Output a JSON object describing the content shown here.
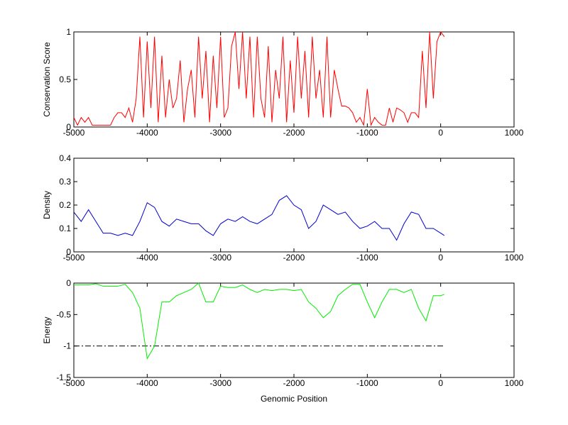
{
  "chart_data": [
    {
      "type": "line",
      "ylabel": "Conservation Score",
      "x": [
        -5000,
        -4950,
        -4900,
        -4850,
        -4800,
        -4750,
        -4700,
        -4650,
        -4600,
        -4550,
        -4500,
        -4450,
        -4400,
        -4350,
        -4300,
        -4250,
        -4200,
        -4150,
        -4100,
        -4050,
        -4000,
        -3950,
        -3900,
        -3850,
        -3800,
        -3750,
        -3700,
        -3650,
        -3600,
        -3550,
        -3500,
        -3450,
        -3400,
        -3350,
        -3300,
        -3250,
        -3200,
        -3150,
        -3100,
        -3050,
        -3000,
        -2950,
        -2900,
        -2850,
        -2800,
        -2750,
        -2700,
        -2650,
        -2600,
        -2550,
        -2500,
        -2450,
        -2400,
        -2350,
        -2300,
        -2250,
        -2200,
        -2150,
        -2100,
        -2050,
        -2000,
        -1950,
        -1900,
        -1850,
        -1800,
        -1750,
        -1700,
        -1650,
        -1600,
        -1550,
        -1500,
        -1450,
        -1400,
        -1350,
        -1300,
        -1250,
        -1200,
        -1150,
        -1100,
        -1050,
        -1000,
        -950,
        -900,
        -850,
        -800,
        -750,
        -700,
        -650,
        -600,
        -550,
        -500,
        -450,
        -400,
        -350,
        -300,
        -250,
        -200,
        -150,
        -100,
        -50,
        0,
        50
      ],
      "series": [
        {
          "color": "#ff0000",
          "values": [
            0.1,
            0.02,
            0.1,
            0.05,
            0.1,
            0.02,
            0.02,
            0.02,
            0.02,
            0.02,
            0.02,
            0.1,
            0.15,
            0.15,
            0.1,
            0.2,
            0.05,
            0.3,
            0.95,
            0.1,
            0.9,
            0.2,
            0.95,
            0.05,
            0.75,
            0.1,
            0.5,
            0.2,
            0.3,
            0.7,
            0.05,
            0.4,
            0.6,
            0.1,
            0.95,
            0.3,
            0.8,
            0.05,
            0.75,
            0.2,
            0.95,
            0.1,
            0.2,
            0.85,
            1.0,
            0.4,
            1.0,
            0.3,
            0.95,
            0.1,
            0.95,
            0.3,
            0.1,
            0.85,
            0.05,
            0.6,
            0.3,
            0.95,
            0.05,
            0.7,
            0.15,
            0.95,
            0.3,
            0.8,
            0.1,
            0.95,
            0.3,
            0.6,
            0.1,
            0.95,
            0.1,
            0.6,
            0.4,
            0.22,
            0.22,
            0.2,
            0.15,
            0.05,
            0.1,
            0.02,
            0.4,
            0.02,
            0.1,
            0.05,
            0.02,
            0.02,
            0.2,
            0.05,
            0.2,
            0.18,
            0.15,
            0.05,
            0.15,
            0.15,
            0.1,
            0.8,
            0.2,
            1.0,
            0.3,
            0.9,
            1.0,
            0.95
          ]
        }
      ],
      "xlim": [
        -5000,
        1000
      ],
      "xticks": [
        -5000,
        -4000,
        -3000,
        -2000,
        -1000,
        0,
        1000
      ],
      "ylim": [
        0,
        1
      ],
      "yticks": [
        0,
        0.5,
        1
      ]
    },
    {
      "type": "line",
      "ylabel": "Density",
      "x": [
        -5000,
        -4900,
        -4800,
        -4700,
        -4600,
        -4500,
        -4400,
        -4300,
        -4200,
        -4100,
        -4000,
        -3900,
        -3800,
        -3700,
        -3600,
        -3500,
        -3400,
        -3300,
        -3200,
        -3100,
        -3000,
        -2900,
        -2800,
        -2700,
        -2600,
        -2500,
        -2400,
        -2300,
        -2200,
        -2100,
        -2000,
        -1900,
        -1800,
        -1700,
        -1600,
        -1500,
        -1400,
        -1300,
        -1200,
        -1100,
        -1000,
        -900,
        -800,
        -700,
        -600,
        -500,
        -400,
        -300,
        -200,
        -100,
        0,
        50
      ],
      "series": [
        {
          "color": "#0000cc",
          "values": [
            0.17,
            0.13,
            0.18,
            0.13,
            0.08,
            0.08,
            0.07,
            0.08,
            0.07,
            0.13,
            0.21,
            0.19,
            0.13,
            0.11,
            0.14,
            0.13,
            0.12,
            0.12,
            0.09,
            0.07,
            0.12,
            0.14,
            0.13,
            0.15,
            0.13,
            0.12,
            0.14,
            0.16,
            0.22,
            0.24,
            0.2,
            0.18,
            0.1,
            0.13,
            0.2,
            0.18,
            0.16,
            0.17,
            0.13,
            0.1,
            0.11,
            0.13,
            0.1,
            0.1,
            0.05,
            0.12,
            0.17,
            0.16,
            0.1,
            0.1,
            0.08,
            0.07
          ]
        }
      ],
      "xlim": [
        -5000,
        1000
      ],
      "xticks": [
        -5000,
        -4000,
        -3000,
        -2000,
        -1000,
        0,
        1000
      ],
      "ylim": [
        0,
        0.4
      ],
      "yticks": [
        0,
        0.1,
        0.2,
        0.3,
        0.4
      ]
    },
    {
      "type": "line",
      "ylabel": "Energy",
      "xlabel": "Genomic Position",
      "x": [
        -5000,
        -4900,
        -4800,
        -4700,
        -4600,
        -4500,
        -4400,
        -4300,
        -4200,
        -4100,
        -4000,
        -3900,
        -3800,
        -3700,
        -3600,
        -3500,
        -3400,
        -3300,
        -3200,
        -3100,
        -3000,
        -2900,
        -2800,
        -2700,
        -2600,
        -2500,
        -2400,
        -2300,
        -2200,
        -2100,
        -2000,
        -1900,
        -1800,
        -1700,
        -1600,
        -1500,
        -1400,
        -1300,
        -1200,
        -1100,
        -1000,
        -900,
        -800,
        -700,
        -600,
        -500,
        -400,
        -300,
        -200,
        -100,
        0,
        50
      ],
      "series": [
        {
          "color": "#00ee00",
          "values": [
            -0.03,
            -0.03,
            -0.03,
            -0.01,
            -0.05,
            -0.05,
            -0.05,
            -0.02,
            -0.15,
            -0.4,
            -1.2,
            -1.0,
            -0.3,
            -0.3,
            -0.2,
            -0.15,
            -0.1,
            0,
            -0.3,
            -0.3,
            -0.05,
            -0.07,
            -0.07,
            -0.03,
            -0.1,
            -0.15,
            -0.1,
            -0.12,
            -0.1,
            -0.1,
            -0.12,
            -0.1,
            -0.3,
            -0.4,
            -0.55,
            -0.45,
            -0.2,
            -0.1,
            -0.02,
            -0.02,
            -0.3,
            -0.55,
            -0.3,
            -0.1,
            -0.1,
            -0.15,
            -0.1,
            -0.4,
            -0.6,
            -0.2,
            -0.2,
            -0.18
          ]
        }
      ],
      "hline": -1,
      "hline_xlim": [
        -5000,
        50
      ],
      "xlim": [
        -5000,
        1000
      ],
      "xticks": [
        -5000,
        -4000,
        -3000,
        -2000,
        -1000,
        0,
        1000
      ],
      "ylim": [
        -1.5,
        0
      ],
      "yticks": [
        -1.5,
        -1,
        -0.5,
        0
      ]
    }
  ]
}
